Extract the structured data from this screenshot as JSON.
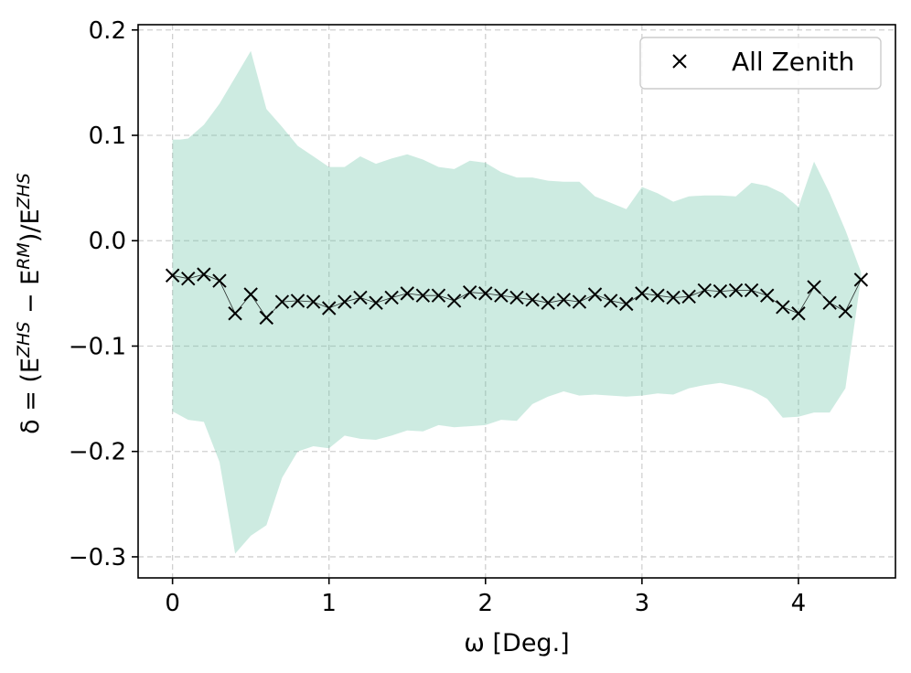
{
  "chart_data": {
    "type": "scatter",
    "xlabel": "ω [Deg.]",
    "ylabel_parts": [
      "δ = (E",
      "ZHS",
      " − E",
      "RM",
      ")/E",
      "ZHS"
    ],
    "xlim": [
      -0.22,
      4.62
    ],
    "ylim": [
      -0.32,
      0.205
    ],
    "xticks": [
      0,
      1,
      2,
      3,
      4
    ],
    "xtick_labels": [
      "0",
      "1",
      "2",
      "3",
      "4"
    ],
    "yticks": [
      0.2,
      0.1,
      0.0,
      -0.1,
      -0.2,
      -0.3
    ],
    "ytick_labels": [
      "0.2",
      "0.1",
      "0.0",
      "−0.1",
      "−0.2",
      "−0.3"
    ],
    "grid": true,
    "legend": {
      "position": "top-right",
      "entries": [
        {
          "marker": "x",
          "label": "All Zenith"
        }
      ]
    },
    "colors": {
      "band": "#66c2a5",
      "band_opacity": 0.33,
      "marker": "#000000",
      "grid": "#d0d0d0"
    },
    "series": [
      {
        "name": "All Zenith",
        "marker": "x",
        "x": [
          0.0,
          0.1,
          0.2,
          0.3,
          0.4,
          0.5,
          0.6,
          0.7,
          0.8,
          0.9,
          1.0,
          1.1,
          1.2,
          1.3,
          1.4,
          1.5,
          1.6,
          1.7,
          1.8,
          1.9,
          2.0,
          2.1,
          2.2,
          2.3,
          2.4,
          2.5,
          2.6,
          2.7,
          2.8,
          2.9,
          3.0,
          3.1,
          3.2,
          3.3,
          3.4,
          3.5,
          3.6,
          3.7,
          3.8,
          3.9,
          4.0,
          4.1,
          4.2,
          4.3,
          4.4
        ],
        "y": [
          -0.033,
          -0.036,
          -0.032,
          -0.038,
          -0.069,
          -0.051,
          -0.073,
          -0.058,
          -0.057,
          -0.058,
          -0.064,
          -0.058,
          -0.054,
          -0.059,
          -0.054,
          -0.05,
          -0.052,
          -0.052,
          -0.057,
          -0.049,
          -0.05,
          -0.052,
          -0.054,
          -0.056,
          -0.059,
          -0.056,
          -0.058,
          -0.051,
          -0.057,
          -0.06,
          -0.05,
          -0.052,
          -0.054,
          -0.053,
          -0.047,
          -0.048,
          -0.047,
          -0.047,
          -0.052,
          -0.063,
          -0.069,
          -0.044,
          -0.059,
          -0.067,
          -0.037
        ]
      }
    ],
    "band": {
      "x": [
        0.0,
        0.05,
        0.1,
        0.2,
        0.3,
        0.4,
        0.5,
        0.6,
        0.7,
        0.8,
        0.9,
        1.0,
        1.1,
        1.2,
        1.3,
        1.4,
        1.5,
        1.6,
        1.7,
        1.8,
        1.9,
        2.0,
        2.1,
        2.2,
        2.3,
        2.4,
        2.5,
        2.6,
        2.7,
        2.8,
        2.9,
        3.0,
        3.1,
        3.2,
        3.3,
        3.4,
        3.5,
        3.6,
        3.7,
        3.8,
        3.9,
        4.0,
        4.1,
        4.2,
        4.3,
        4.4
      ],
      "upper": [
        0.096,
        0.096,
        0.097,
        0.11,
        0.13,
        0.155,
        0.18,
        0.125,
        0.108,
        0.09,
        0.08,
        0.07,
        0.07,
        0.08,
        0.073,
        0.078,
        0.082,
        0.077,
        0.07,
        0.068,
        0.076,
        0.074,
        0.065,
        0.06,
        0.06,
        0.057,
        0.056,
        0.056,
        0.042,
        0.036,
        0.03,
        0.051,
        0.045,
        0.037,
        0.042,
        0.043,
        0.043,
        0.042,
        0.055,
        0.052,
        0.045,
        0.032,
        0.075,
        0.045,
        0.01,
        -0.03
      ],
      "lower": [
        -0.162,
        -0.166,
        -0.17,
        -0.172,
        -0.21,
        -0.297,
        -0.28,
        -0.27,
        -0.225,
        -0.2,
        -0.195,
        -0.197,
        -0.185,
        -0.188,
        -0.189,
        -0.185,
        -0.18,
        -0.181,
        -0.175,
        -0.177,
        -0.176,
        -0.175,
        -0.17,
        -0.171,
        -0.155,
        -0.148,
        -0.143,
        -0.147,
        -0.146,
        -0.147,
        -0.148,
        -0.147,
        -0.145,
        -0.146,
        -0.14,
        -0.137,
        -0.135,
        -0.138,
        -0.142,
        -0.15,
        -0.168,
        -0.167,
        -0.163,
        -0.163,
        -0.14,
        -0.035
      ]
    }
  }
}
